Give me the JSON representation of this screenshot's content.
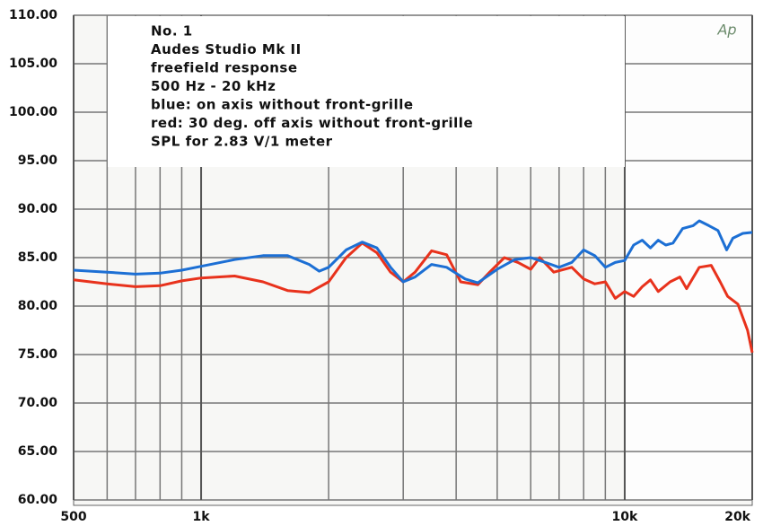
{
  "chart_data": {
    "type": "line",
    "annotations": [
      "No. 1",
      "Audes Studio Mk II",
      "freefield response",
      "500 Hz - 20 kHz",
      "blue: on axis without front-grille",
      "red: 30 deg. off axis without front-grille",
      "SPL for 2.83  V/1 meter"
    ],
    "logo": "Ap",
    "xlog": true,
    "grid": true,
    "xlim": [
      500,
      20000
    ],
    "ylim": [
      60,
      110
    ],
    "xticks": [
      500,
      {
        "value": 1000,
        "label": "1k"
      },
      {
        "value": 10000,
        "label": "10k"
      },
      {
        "value": 20000,
        "label": "20k"
      }
    ],
    "yticks": [
      {
        "value": 60,
        "label": "60.00"
      },
      {
        "value": 65,
        "label": "65.00"
      },
      {
        "value": 70,
        "label": "70.00"
      },
      {
        "value": 75,
        "label": "75.00"
      },
      {
        "value": 80,
        "label": "80.00"
      },
      {
        "value": 85,
        "label": "85.00"
      },
      {
        "value": 90,
        "label": "90.00"
      },
      {
        "value": 95,
        "label": "95.00"
      },
      {
        "value": 100,
        "label": "100.00"
      },
      {
        "value": 105,
        "label": "105.00"
      },
      {
        "value": 110,
        "label": "110.00"
      }
    ],
    "series": [
      {
        "color": "#1c6fd4",
        "x": [
          500,
          600,
          700,
          800,
          900,
          1000,
          1200,
          1400,
          1600,
          1800,
          1900,
          2000,
          2200,
          2400,
          2600,
          2800,
          3000,
          3200,
          3500,
          3800,
          4200,
          4500,
          5000,
          5500,
          6000,
          6500,
          7000,
          7500,
          8000,
          8500,
          9000,
          9500,
          10000,
          10500,
          11000,
          11500,
          12000,
          12500,
          13000,
          13700,
          14500,
          15000,
          15800,
          16600,
          17400,
          18000,
          19000,
          20000
        ],
        "values": [
          83.7,
          83.5,
          83.3,
          83.4,
          83.7,
          84.1,
          84.8,
          85.2,
          85.2,
          84.3,
          83.6,
          84.0,
          85.8,
          86.6,
          86.0,
          84.0,
          82.5,
          83.0,
          84.3,
          84.0,
          82.8,
          82.4,
          83.8,
          84.8,
          85.0,
          84.5,
          84.0,
          84.5,
          85.8,
          85.2,
          84.0,
          84.5,
          84.7,
          86.3,
          86.8,
          86.0,
          86.8,
          86.3,
          86.5,
          88.0,
          88.3,
          88.8,
          88.3,
          87.8,
          85.8,
          87.0,
          87.5,
          87.6
        ]
      },
      {
        "color": "#e8321c",
        "x": [
          500,
          600,
          700,
          800,
          900,
          1000,
          1200,
          1400,
          1600,
          1800,
          2000,
          2200,
          2400,
          2600,
          2800,
          3000,
          3200,
          3500,
          3800,
          4100,
          4500,
          4800,
          5200,
          5600,
          6000,
          6300,
          6800,
          7500,
          8000,
          8500,
          9000,
          9500,
          10000,
          10500,
          11000,
          11500,
          12000,
          12800,
          13500,
          14000,
          15000,
          16000,
          16800,
          17500,
          18500,
          19500,
          20000
        ],
        "values": [
          82.7,
          82.3,
          82.0,
          82.1,
          82.6,
          82.9,
          83.1,
          82.5,
          81.6,
          81.4,
          82.5,
          85.0,
          86.5,
          85.5,
          83.5,
          82.5,
          83.5,
          85.7,
          85.3,
          82.5,
          82.2,
          83.5,
          85.0,
          84.5,
          83.8,
          85.0,
          83.5,
          84.0,
          82.8,
          82.3,
          82.5,
          80.8,
          81.5,
          81.0,
          82.0,
          82.7,
          81.5,
          82.5,
          83.0,
          81.8,
          84.0,
          84.2,
          82.5,
          81.0,
          80.2,
          77.5,
          75.2
        ]
      }
    ]
  }
}
